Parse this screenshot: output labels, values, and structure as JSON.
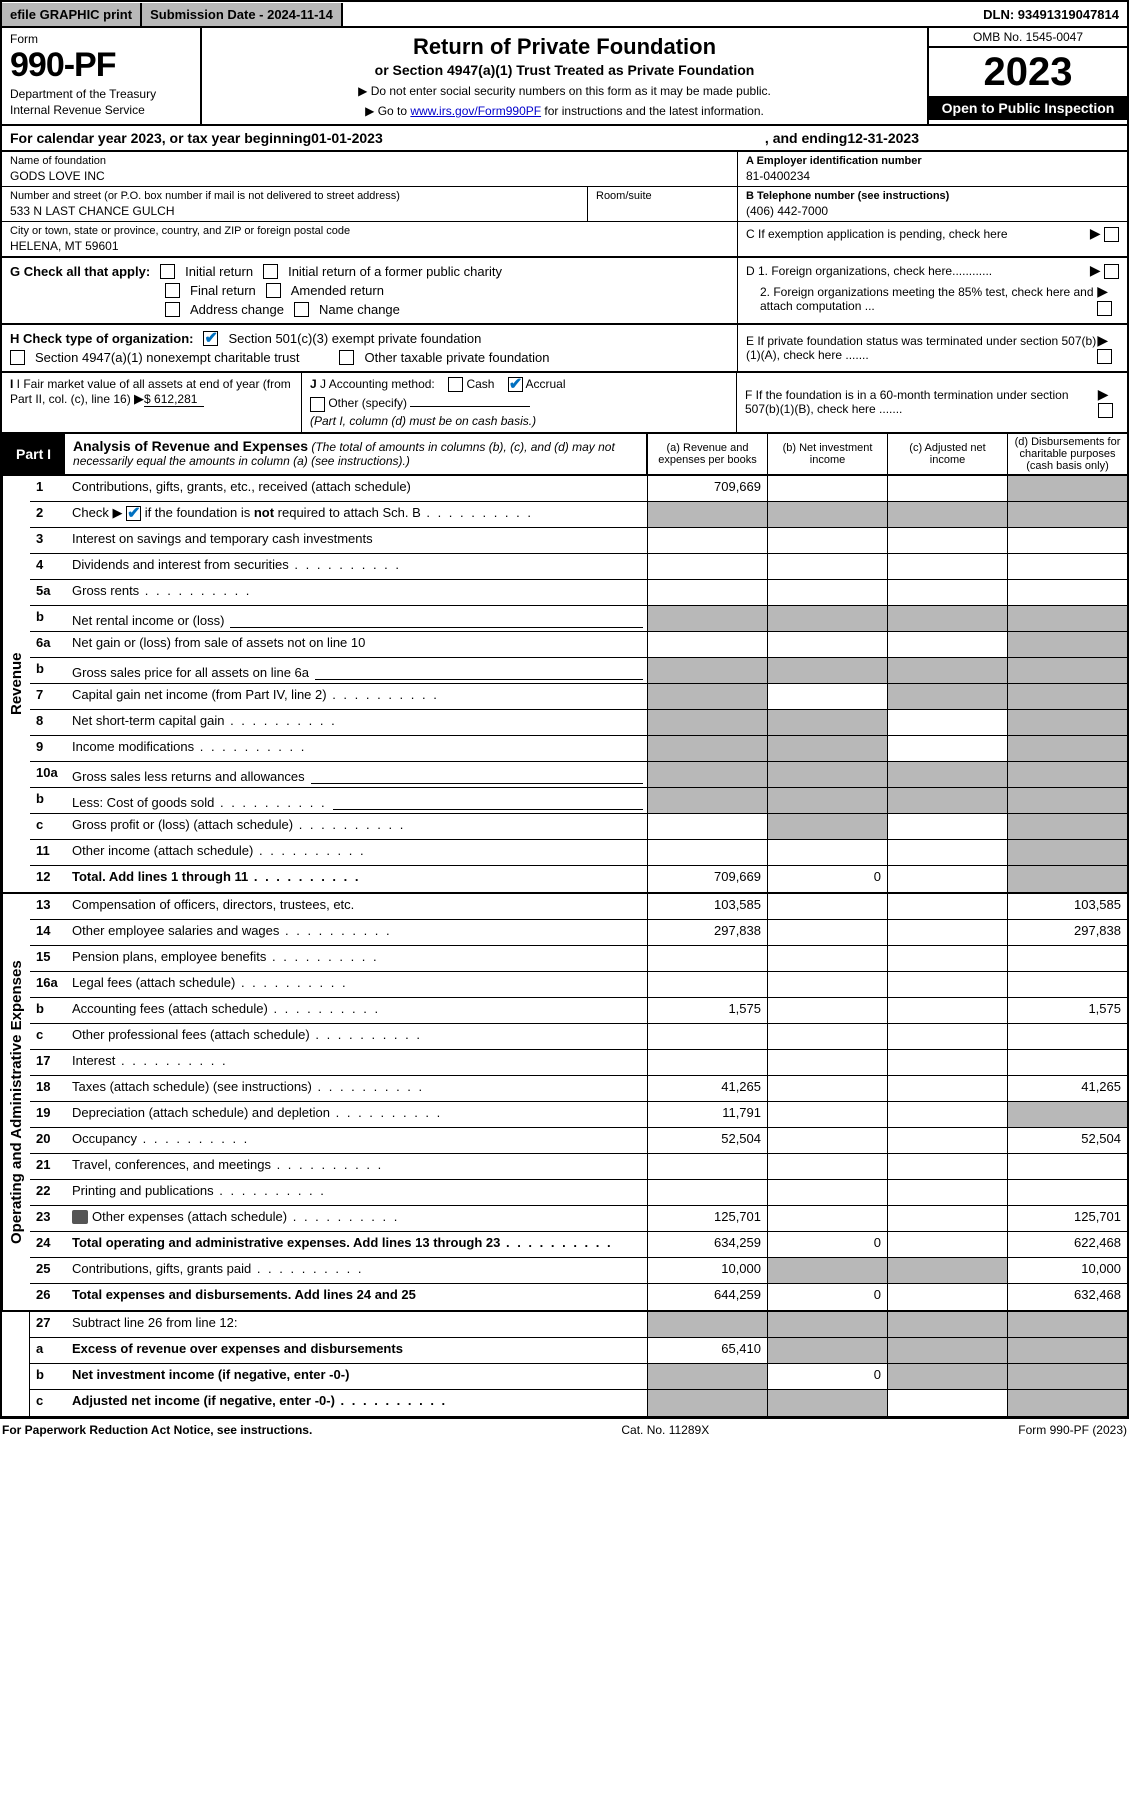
{
  "topbar": {
    "efile": "efile GRAPHIC print",
    "subdate": "Submission Date - 2024-11-14",
    "dln": "DLN: 93491319047814"
  },
  "header": {
    "form_label": "Form",
    "form_num": "990-PF",
    "dept1": "Department of the Treasury",
    "dept2": "Internal Revenue Service",
    "title1": "Return of Private Foundation",
    "title2": "or Section 4947(a)(1) Trust Treated as Private Foundation",
    "note1": "▶ Do not enter social security numbers on this form as it may be made public.",
    "note2_pre": "▶ Go to ",
    "note2_link": "www.irs.gov/Form990PF",
    "note2_post": " for instructions and the latest information.",
    "omb": "OMB No. 1545-0047",
    "year": "2023",
    "open": "Open to Public Inspection"
  },
  "calyear": {
    "pre": "For calendar year 2023, or tax year beginning ",
    "begin": "01-01-2023",
    "mid": ", and ending ",
    "end": "12-31-2023"
  },
  "info": {
    "name_label": "Name of foundation",
    "name": "GODS LOVE INC",
    "addr_label": "Number and street (or P.O. box number if mail is not delivered to street address)",
    "addr": "533 N LAST CHANCE GULCH",
    "room_label": "Room/suite",
    "city_label": "City or town, state or province, country, and ZIP or foreign postal code",
    "city": "HELENA, MT  59601",
    "ein_label": "A Employer identification number",
    "ein": "81-0400234",
    "phone_label": "B Telephone number (see instructions)",
    "phone": "(406) 442-7000",
    "c_label": "C If exemption application is pending, check here",
    "d1": "D 1. Foreign organizations, check here............",
    "d2": "2. Foreign organizations meeting the 85% test, check here and attach computation ...",
    "e_label": "E  If private foundation status was terminated under section 507(b)(1)(A), check here .......",
    "f_label": "F  If the foundation is in a 60-month termination under section 507(b)(1)(B), check here .......",
    "g_label": "G Check all that apply:",
    "g_opts": [
      "Initial return",
      "Initial return of a former public charity",
      "Final return",
      "Amended return",
      "Address change",
      "Name change"
    ],
    "h_label": "H Check type of organization:",
    "h1": "Section 501(c)(3) exempt private foundation",
    "h2": "Section 4947(a)(1) nonexempt charitable trust",
    "h3": "Other taxable private foundation",
    "i_label": "I Fair market value of all assets at end of year (from Part II, col. (c), line 16)",
    "i_val": "$  612,281",
    "j_label": "J Accounting method:",
    "j_cash": "Cash",
    "j_accrual": "Accrual",
    "j_other": "Other (specify)",
    "j_note": "(Part I, column (d) must be on cash basis.)"
  },
  "part1": {
    "badge": "Part I",
    "title": "Analysis of Revenue and Expenses",
    "subtitle": " (The total of amounts in columns (b), (c), and (d) may not necessarily equal the amounts in column (a) (see instructions).)",
    "col_a": "(a)   Revenue and expenses per books",
    "col_b": "(b)   Net investment income",
    "col_c": "(c)   Adjusted net income",
    "col_d": "(d)   Disbursements for charitable purposes (cash basis only)"
  },
  "vtabs": {
    "rev": "Revenue",
    "exp": "Operating and Administrative Expenses"
  },
  "rows": {
    "r1": {
      "n": "1",
      "d": "Contributions, gifts, grants, etc., received (attach schedule)",
      "a": "709,669",
      "grey": [
        "d"
      ]
    },
    "r2": {
      "n": "2",
      "d": "Check ▶ ☑ if the foundation is not required to attach Sch. B",
      "dots": true,
      "grey": [
        "a",
        "b",
        "c",
        "d"
      ],
      "nobold": true,
      "checkgreen": true
    },
    "r3": {
      "n": "3",
      "d": "Interest on savings and temporary cash investments"
    },
    "r4": {
      "n": "4",
      "d": "Dividends and interest from securities",
      "dots": true
    },
    "r5a": {
      "n": "5a",
      "d": "Gross rents",
      "dots": true
    },
    "r5b": {
      "n": "b",
      "d": "Net rental income or (loss)",
      "inset": true,
      "grey": [
        "a",
        "b",
        "c",
        "d"
      ]
    },
    "r6a": {
      "n": "6a",
      "d": "Net gain or (loss) from sale of assets not on line 10",
      "grey": [
        "d"
      ]
    },
    "r6b": {
      "n": "b",
      "d": "Gross sales price for all assets on line 6a",
      "inset": true,
      "grey": [
        "a",
        "b",
        "c",
        "d"
      ]
    },
    "r7": {
      "n": "7",
      "d": "Capital gain net income (from Part IV, line 2)",
      "dots": true,
      "grey": [
        "a",
        "c",
        "d"
      ]
    },
    "r8": {
      "n": "8",
      "d": "Net short-term capital gain",
      "dots": true,
      "grey": [
        "a",
        "b",
        "d"
      ]
    },
    "r9": {
      "n": "9",
      "d": "Income modifications",
      "dots": true,
      "grey": [
        "a",
        "b",
        "d"
      ]
    },
    "r10a": {
      "n": "10a",
      "d": "Gross sales less returns and allowances",
      "inset": true,
      "grey": [
        "a",
        "b",
        "c",
        "d"
      ]
    },
    "r10b": {
      "n": "b",
      "d": "Less: Cost of goods sold",
      "dots": true,
      "inset": true,
      "grey": [
        "a",
        "b",
        "c",
        "d"
      ]
    },
    "r10c": {
      "n": "c",
      "d": "Gross profit or (loss) (attach schedule)",
      "dots": true,
      "grey": [
        "b",
        "d"
      ]
    },
    "r11": {
      "n": "11",
      "d": "Other income (attach schedule)",
      "dots": true,
      "grey": [
        "d"
      ]
    },
    "r12": {
      "n": "12",
      "d": "Total. Add lines 1 through 11",
      "dots": true,
      "bold": true,
      "a": "709,669",
      "b": "0",
      "grey": [
        "d"
      ]
    },
    "r13": {
      "n": "13",
      "d": "Compensation of officers, directors, trustees, etc.",
      "a": "103,585",
      "dd": "103,585"
    },
    "r14": {
      "n": "14",
      "d": "Other employee salaries and wages",
      "dots": true,
      "a": "297,838",
      "dd": "297,838"
    },
    "r15": {
      "n": "15",
      "d": "Pension plans, employee benefits",
      "dots": true
    },
    "r16a": {
      "n": "16a",
      "d": "Legal fees (attach schedule)",
      "dots": true
    },
    "r16b": {
      "n": "b",
      "d": "Accounting fees (attach schedule)",
      "dots": true,
      "a": "1,575",
      "dd": "1,575"
    },
    "r16c": {
      "n": "c",
      "d": "Other professional fees (attach schedule)",
      "dots": true
    },
    "r17": {
      "n": "17",
      "d": "Interest",
      "dots": true
    },
    "r18": {
      "n": "18",
      "d": "Taxes (attach schedule) (see instructions)",
      "dots": true,
      "a": "41,265",
      "dd": "41,265"
    },
    "r19": {
      "n": "19",
      "d": "Depreciation (attach schedule) and depletion",
      "dots": true,
      "a": "11,791",
      "grey": [
        "d"
      ]
    },
    "r20": {
      "n": "20",
      "d": "Occupancy",
      "dots": true,
      "a": "52,504",
      "dd": "52,504"
    },
    "r21": {
      "n": "21",
      "d": "Travel, conferences, and meetings",
      "dots": true
    },
    "r22": {
      "n": "22",
      "d": "Printing and publications",
      "dots": true
    },
    "r23": {
      "n": "23",
      "d": "Other expenses (attach schedule)",
      "dots": true,
      "icon": true,
      "a": "125,701",
      "dd": "125,701"
    },
    "r24": {
      "n": "24",
      "d": "Total operating and administrative expenses. Add lines 13 through 23",
      "dots": true,
      "bold": true,
      "a": "634,259",
      "b": "0",
      "dd": "622,468"
    },
    "r25": {
      "n": "25",
      "d": "Contributions, gifts, grants paid",
      "dots": true,
      "a": "10,000",
      "grey": [
        "b",
        "c"
      ],
      "dd": "10,000"
    },
    "r26": {
      "n": "26",
      "d": "Total expenses and disbursements. Add lines 24 and 25",
      "bold": true,
      "a": "644,259",
      "b": "0",
      "dd": "632,468"
    },
    "r27": {
      "n": "27",
      "d": "Subtract line 26 from line 12:",
      "grey": [
        "a",
        "b",
        "c",
        "d"
      ]
    },
    "r27a": {
      "n": "a",
      "d": "Excess of revenue over expenses and disbursements",
      "bold": true,
      "a": "65,410",
      "grey": [
        "b",
        "c",
        "d"
      ]
    },
    "r27b": {
      "n": "b",
      "d": "Net investment income (if negative, enter -0-)",
      "bold": true,
      "b": "0",
      "grey": [
        "a",
        "c",
        "d"
      ]
    },
    "r27c": {
      "n": "c",
      "d": "Adjusted net income (if negative, enter -0-)",
      "dots": true,
      "bold": true,
      "grey": [
        "a",
        "b",
        "d"
      ]
    }
  },
  "footer": {
    "left": "For Paperwork Reduction Act Notice, see instructions.",
    "mid": "Cat. No. 11289X",
    "right": "Form 990-PF (2023)"
  }
}
